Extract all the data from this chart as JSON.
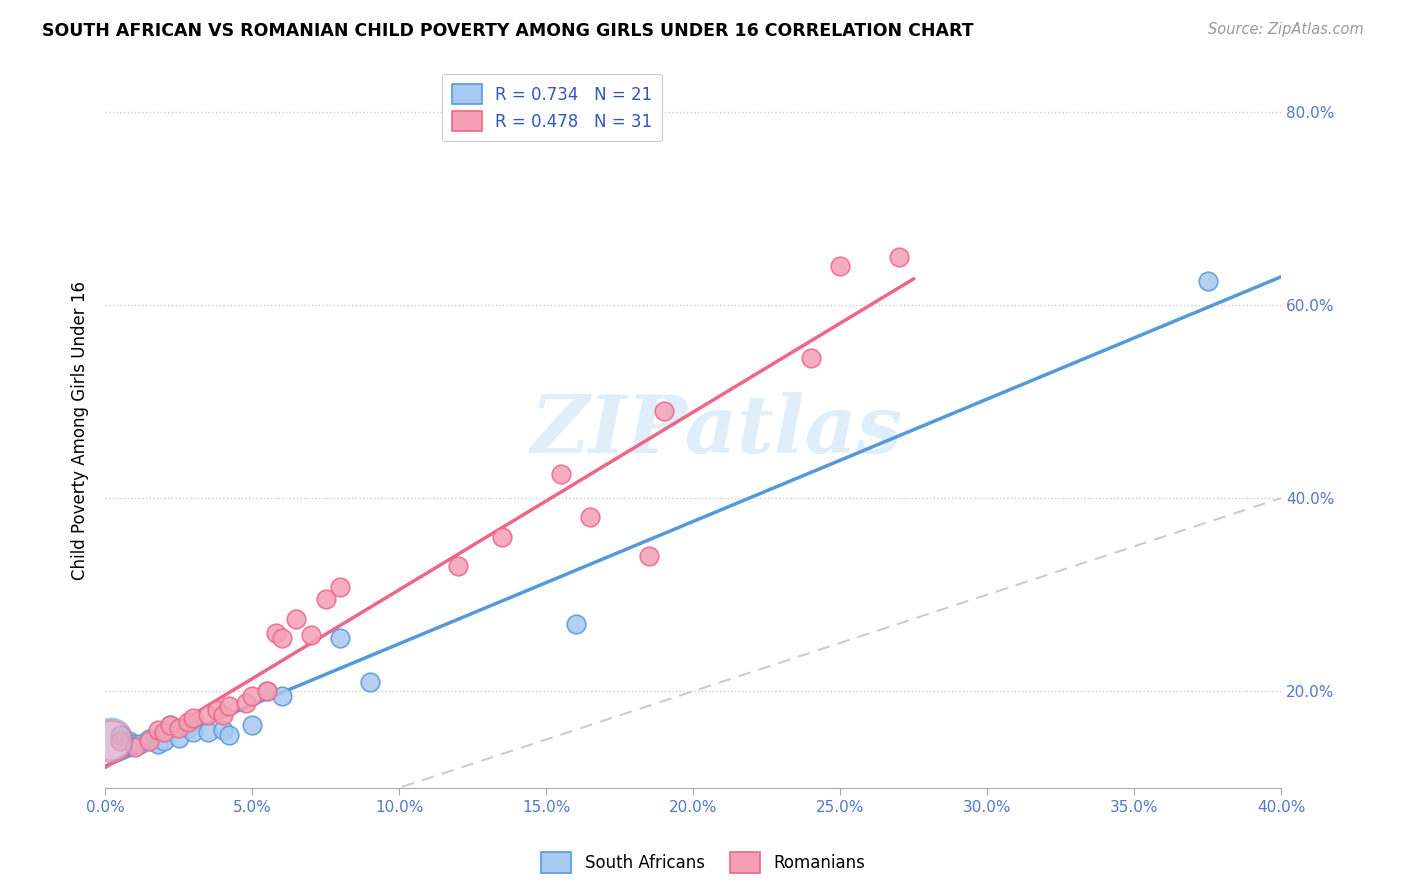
{
  "title": "SOUTH AFRICAN VS ROMANIAN CHILD POVERTY AMONG GIRLS UNDER 16 CORRELATION CHART",
  "source": "Source: ZipAtlas.com",
  "ylabel": "Child Poverty Among Girls Under 16",
  "legend_sa": "R = 0.734   N = 21",
  "legend_ro": "R = 0.478   N = 31",
  "sa_color": "#a8c8f0",
  "ro_color": "#f4a0b5",
  "sa_line_color": "#5599dd",
  "ro_line_color": "#ee6688",
  "diagonal_color": "#cccccc",
  "xlim": [
    0.0,
    0.4
  ],
  "ylim": [
    0.1,
    0.84
  ],
  "x_ticks": [
    0.0,
    0.05,
    0.1,
    0.15,
    0.2,
    0.25,
    0.3,
    0.35,
    0.4
  ],
  "y_ticks": [
    0.2,
    0.4,
    0.6,
    0.8
  ],
  "watermark_text": "ZIPatlas",
  "sa_scatter": [
    [
      0.005,
      0.155
    ],
    [
      0.008,
      0.148
    ],
    [
      0.01,
      0.145
    ],
    [
      0.012,
      0.145
    ],
    [
      0.015,
      0.15
    ],
    [
      0.018,
      0.145
    ],
    [
      0.02,
      0.148
    ],
    [
      0.022,
      0.165
    ],
    [
      0.025,
      0.152
    ],
    [
      0.028,
      0.162
    ],
    [
      0.03,
      0.158
    ],
    [
      0.035,
      0.158
    ],
    [
      0.04,
      0.16
    ],
    [
      0.042,
      0.155
    ],
    [
      0.05,
      0.165
    ],
    [
      0.055,
      0.2
    ],
    [
      0.06,
      0.195
    ],
    [
      0.08,
      0.255
    ],
    [
      0.09,
      0.21
    ],
    [
      0.16,
      0.27
    ],
    [
      0.375,
      0.625
    ]
  ],
  "ro_scatter": [
    [
      0.005,
      0.148
    ],
    [
      0.01,
      0.142
    ],
    [
      0.015,
      0.148
    ],
    [
      0.018,
      0.16
    ],
    [
      0.02,
      0.158
    ],
    [
      0.022,
      0.165
    ],
    [
      0.025,
      0.162
    ],
    [
      0.028,
      0.168
    ],
    [
      0.03,
      0.172
    ],
    [
      0.035,
      0.175
    ],
    [
      0.038,
      0.18
    ],
    [
      0.04,
      0.175
    ],
    [
      0.042,
      0.185
    ],
    [
      0.048,
      0.188
    ],
    [
      0.05,
      0.195
    ],
    [
      0.055,
      0.2
    ],
    [
      0.058,
      0.26
    ],
    [
      0.06,
      0.255
    ],
    [
      0.065,
      0.275
    ],
    [
      0.07,
      0.258
    ],
    [
      0.075,
      0.295
    ],
    [
      0.08,
      0.308
    ],
    [
      0.12,
      0.33
    ],
    [
      0.135,
      0.36
    ],
    [
      0.155,
      0.425
    ],
    [
      0.165,
      0.38
    ],
    [
      0.185,
      0.34
    ],
    [
      0.19,
      0.49
    ],
    [
      0.24,
      0.545
    ],
    [
      0.25,
      0.64
    ],
    [
      0.27,
      0.65
    ]
  ]
}
